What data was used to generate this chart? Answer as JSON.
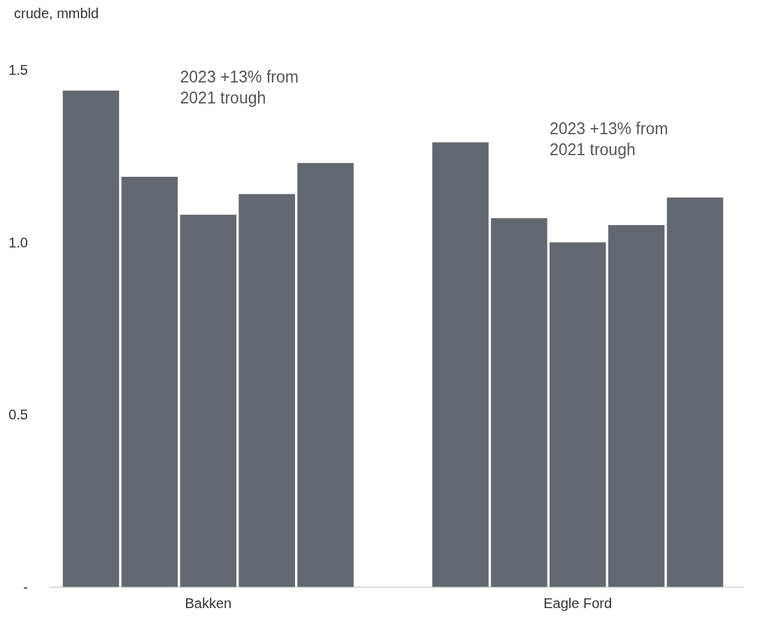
{
  "chart_data": {
    "type": "bar",
    "ylabel": "crude, mmbld",
    "categories": [
      "Bakken",
      "Eagle Ford"
    ],
    "series": [
      {
        "color": "#636870",
        "values": [
          1.44,
          1.29
        ]
      },
      {
        "color": "#636870",
        "values": [
          1.19,
          1.07
        ]
      },
      {
        "color": "#636870",
        "values": [
          1.08,
          1.0
        ]
      },
      {
        "color": "#636870",
        "values": [
          1.14,
          1.05
        ]
      },
      {
        "color": "#636870",
        "values": [
          1.23,
          1.13
        ]
      }
    ],
    "ylim": [
      0,
      1.5
    ],
    "yticks": [
      {
        "value": 0,
        "label": "-"
      },
      0.5,
      {
        "value": 1,
        "label": "1.0"
      },
      1.5
    ],
    "annotations": [
      "2023 +13% from 2021 trough",
      "2023 +13% from 2021 trough"
    ],
    "grid": false
  }
}
